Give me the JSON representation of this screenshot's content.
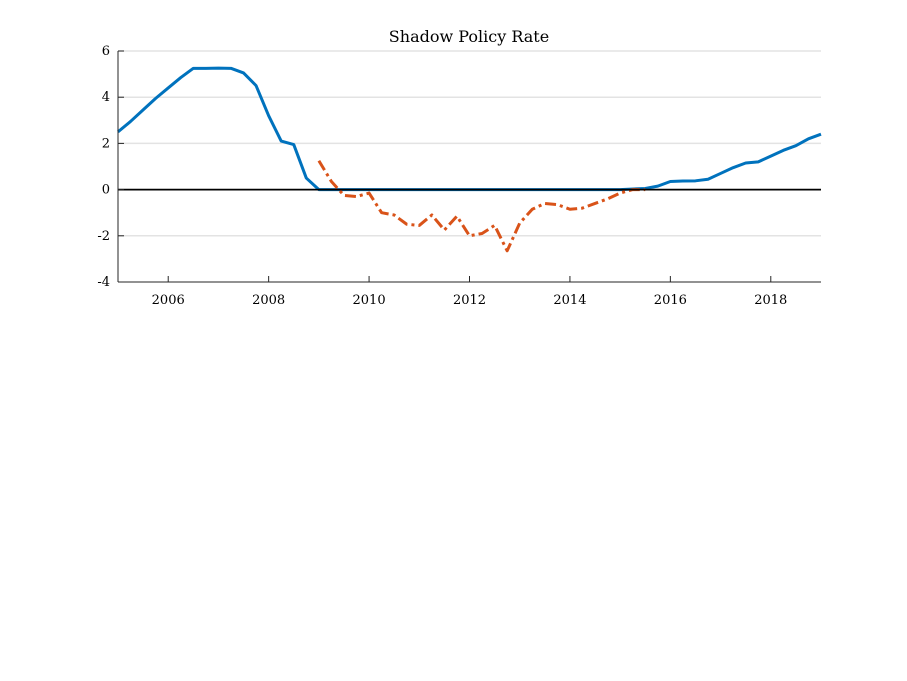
{
  "chart_data": {
    "type": "line",
    "title": "Shadow Policy Rate",
    "xlabel": "",
    "ylabel": "",
    "xlim": [
      2005.0,
      2019.0
    ],
    "ylim": [
      -4,
      6
    ],
    "x_ticks": [
      2006,
      2008,
      2010,
      2012,
      2014,
      2016,
      2018
    ],
    "x_tick_labels": [
      "2006",
      "2008",
      "2010",
      "2012",
      "2014",
      "2016",
      "2018"
    ],
    "y_ticks": [
      -4,
      -2,
      0,
      2,
      4,
      6
    ],
    "y_tick_labels": [
      "-4",
      "-2",
      "0",
      "2",
      "4",
      "6"
    ],
    "grid": "horizontal",
    "reference_line": 0,
    "series": [
      {
        "color": "#0072BD",
        "style": "solid",
        "points": [
          [
            2005.0,
            2.5
          ],
          [
            2005.25,
            2.95
          ],
          [
            2005.5,
            3.45
          ],
          [
            2005.75,
            3.95
          ],
          [
            2006.0,
            4.4
          ],
          [
            2006.25,
            4.85
          ],
          [
            2006.5,
            5.25
          ],
          [
            2006.75,
            5.25
          ],
          [
            2007.0,
            5.26
          ],
          [
            2007.25,
            5.25
          ],
          [
            2007.5,
            5.05
          ],
          [
            2007.75,
            4.5
          ],
          [
            2008.0,
            3.2
          ],
          [
            2008.25,
            2.1
          ],
          [
            2008.5,
            1.95
          ],
          [
            2008.75,
            0.5
          ],
          [
            2009.0,
            0.0
          ],
          [
            2009.25,
            0.0
          ],
          [
            2010.0,
            0.0
          ],
          [
            2011.0,
            0.0
          ],
          [
            2012.0,
            0.0
          ],
          [
            2013.0,
            0.0
          ],
          [
            2014.0,
            0.0
          ],
          [
            2015.0,
            0.0
          ],
          [
            2015.5,
            0.05
          ],
          [
            2015.75,
            0.15
          ],
          [
            2016.0,
            0.35
          ],
          [
            2016.25,
            0.37
          ],
          [
            2016.5,
            0.38
          ],
          [
            2016.75,
            0.45
          ],
          [
            2017.0,
            0.7
          ],
          [
            2017.25,
            0.95
          ],
          [
            2017.5,
            1.15
          ],
          [
            2017.75,
            1.2
          ],
          [
            2018.0,
            1.45
          ],
          [
            2018.25,
            1.7
          ],
          [
            2018.5,
            1.9
          ],
          [
            2018.75,
            2.2
          ],
          [
            2019.0,
            2.4
          ]
        ]
      },
      {
        "color": "#D95319",
        "style": "dash-dot",
        "points": [
          [
            2009.0,
            1.25
          ],
          [
            2009.25,
            0.35
          ],
          [
            2009.5,
            -0.25
          ],
          [
            2009.75,
            -0.3
          ],
          [
            2010.0,
            -0.15
          ],
          [
            2010.25,
            -1.0
          ],
          [
            2010.5,
            -1.1
          ],
          [
            2010.75,
            -1.5
          ],
          [
            2011.0,
            -1.55
          ],
          [
            2011.25,
            -1.1
          ],
          [
            2011.5,
            -1.75
          ],
          [
            2011.75,
            -1.15
          ],
          [
            2012.0,
            -2.0
          ],
          [
            2012.25,
            -1.9
          ],
          [
            2012.5,
            -1.55
          ],
          [
            2012.75,
            -2.65
          ],
          [
            2013.0,
            -1.45
          ],
          [
            2013.25,
            -0.85
          ],
          [
            2013.5,
            -0.6
          ],
          [
            2013.75,
            -0.65
          ],
          [
            2014.0,
            -0.85
          ],
          [
            2014.25,
            -0.8
          ],
          [
            2014.5,
            -0.6
          ],
          [
            2014.75,
            -0.4
          ],
          [
            2015.0,
            -0.15
          ],
          [
            2015.25,
            0.0
          ],
          [
            2015.5,
            0.0
          ]
        ]
      }
    ]
  }
}
